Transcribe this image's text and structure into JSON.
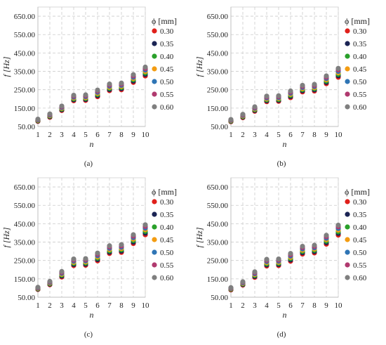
{
  "chart_data": [
    {
      "type": "scatter",
      "panel_label": "(a)",
      "xlabel": "n",
      "ylabel": "f [Hz]",
      "legend_title": "ϕ [mm]",
      "legend_placement": "right",
      "x": [
        1,
        2,
        3,
        4,
        5,
        6,
        7,
        8,
        9,
        10
      ],
      "x_ticks": [
        "1",
        "2",
        "3",
        "4",
        "5",
        "6",
        "7",
        "8",
        "9",
        "10"
      ],
      "y_ticks": [
        "50.00",
        "150.00",
        "250.00",
        "350.00",
        "450.00",
        "550.00",
        "650.00"
      ],
      "ylim": [
        50,
        700
      ],
      "grid": true,
      "series": [
        {
          "name": "0.30",
          "color": "#e0201b",
          "values": [
            78,
            100,
            137,
            190,
            192,
            212,
            245,
            250,
            290,
            325
          ]
        },
        {
          "name": "0.35",
          "color": "#1b2454",
          "values": [
            80,
            103,
            141,
            195,
            197,
            218,
            251,
            256,
            297,
            333
          ]
        },
        {
          "name": "0.40",
          "color": "#2aa02b",
          "values": [
            82,
            106,
            145,
            200,
            202,
            224,
            257,
            262,
            304,
            341
          ]
        },
        {
          "name": "0.45",
          "color": "#f39c12",
          "values": [
            84,
            109,
            149,
            205,
            207,
            230,
            263,
            268,
            311,
            349
          ]
        },
        {
          "name": "0.50",
          "color": "#2f75b5",
          "values": [
            86,
            112,
            153,
            210,
            212,
            236,
            269,
            274,
            318,
            357
          ]
        },
        {
          "name": "0.55",
          "color": "#b03a6f",
          "values": [
            88,
            115,
            157,
            215,
            217,
            242,
            275,
            280,
            325,
            365
          ]
        },
        {
          "name": "0.60",
          "color": "#7f7f7f",
          "values": [
            90,
            118,
            161,
            220,
            222,
            248,
            281,
            286,
            332,
            373
          ]
        }
      ]
    },
    {
      "type": "scatter",
      "panel_label": "(b)",
      "xlabel": "n",
      "ylabel": "f [Hz]",
      "legend_title": "ϕ [mm]",
      "legend_placement": "right",
      "x": [
        1,
        2,
        3,
        4,
        5,
        6,
        7,
        8,
        9,
        10
      ],
      "x_ticks": [
        "1",
        "2",
        "3",
        "4",
        "5",
        "6",
        "7",
        "8",
        "9",
        "10"
      ],
      "y_ticks": [
        "50.00",
        "150.00",
        "250.00",
        "350.00",
        "450.00",
        "550.00",
        "650.00"
      ],
      "ylim": [
        50,
        700
      ],
      "grid": true,
      "series": [
        {
          "name": "0.30",
          "color": "#e0201b",
          "values": [
            76,
            98,
            133,
            185,
            187,
            207,
            238,
            243,
            283,
            318
          ]
        },
        {
          "name": "0.35",
          "color": "#1b2454",
          "values": [
            78,
            101,
            137,
            190,
            192,
            213,
            244,
            249,
            290,
            326
          ]
        },
        {
          "name": "0.40",
          "color": "#2aa02b",
          "values": [
            80,
            104,
            141,
            195,
            197,
            219,
            250,
            255,
            297,
            334
          ]
        },
        {
          "name": "0.45",
          "color": "#f39c12",
          "values": [
            82,
            107,
            145,
            200,
            202,
            225,
            256,
            261,
            304,
            342
          ]
        },
        {
          "name": "0.50",
          "color": "#2f75b5",
          "values": [
            84,
            110,
            149,
            205,
            207,
            231,
            262,
            267,
            311,
            350
          ]
        },
        {
          "name": "0.55",
          "color": "#b03a6f",
          "values": [
            86,
            113,
            153,
            210,
            212,
            237,
            268,
            273,
            318,
            358
          ]
        },
        {
          "name": "0.60",
          "color": "#7f7f7f",
          "values": [
            88,
            116,
            157,
            215,
            217,
            243,
            274,
            279,
            325,
            366
          ]
        }
      ]
    },
    {
      "type": "scatter",
      "panel_label": "(c)",
      "xlabel": "n",
      "ylabel": "f [Hz]",
      "legend_title": "ϕ [mm]",
      "legend_placement": "right",
      "x": [
        1,
        2,
        3,
        4,
        5,
        6,
        7,
        8,
        9,
        10
      ],
      "x_ticks": [
        "1",
        "2",
        "3",
        "4",
        "5",
        "6",
        "7",
        "8",
        "9",
        "10"
      ],
      "y_ticks": [
        "50.00",
        "150.00",
        "250.00",
        "350.00",
        "450.00",
        "550.00",
        "650.00"
      ],
      "ylim": [
        50,
        700
      ],
      "grid": true,
      "series": [
        {
          "name": "0.30",
          "color": "#e0201b",
          "values": [
            92,
            118,
            160,
            222,
            224,
            248,
            288,
            294,
            342,
            390
          ]
        },
        {
          "name": "0.35",
          "color": "#1b2454",
          "values": [
            94,
            121,
            165,
            228,
            230,
            255,
            295,
            301,
            350,
            399
          ]
        },
        {
          "name": "0.40",
          "color": "#2aa02b",
          "values": [
            96,
            124,
            170,
            234,
            236,
            262,
            302,
            308,
            358,
            408
          ]
        },
        {
          "name": "0.45",
          "color": "#f39c12",
          "values": [
            98,
            127,
            175,
            240,
            242,
            269,
            309,
            315,
            366,
            417
          ]
        },
        {
          "name": "0.50",
          "color": "#2f75b5",
          "values": [
            100,
            130,
            180,
            246,
            248,
            276,
            316,
            322,
            374,
            426
          ]
        },
        {
          "name": "0.55",
          "color": "#b03a6f",
          "values": [
            102,
            133,
            185,
            252,
            254,
            283,
            323,
            329,
            382,
            435
          ]
        },
        {
          "name": "0.60",
          "color": "#7f7f7f",
          "values": [
            104,
            136,
            190,
            258,
            260,
            290,
            330,
            336,
            390,
            444
          ]
        }
      ]
    },
    {
      "type": "scatter",
      "panel_label": "(d)",
      "xlabel": "n",
      "ylabel": "f [Hz]",
      "legend_title": "ϕ [mm]",
      "legend_placement": "right",
      "x": [
        1,
        2,
        3,
        4,
        5,
        6,
        7,
        8,
        9,
        10
      ],
      "x_ticks": [
        "1",
        "2",
        "3",
        "4",
        "5",
        "6",
        "7",
        "8",
        "9",
        "10"
      ],
      "y_ticks": [
        "50.00",
        "150.00",
        "250.00",
        "350.00",
        "450.00",
        "550.00",
        "650.00"
      ],
      "ylim": [
        50,
        700
      ],
      "grid": true,
      "series": [
        {
          "name": "0.30",
          "color": "#e0201b",
          "values": [
            90,
            116,
            158,
            220,
            222,
            246,
            285,
            291,
            339,
            388
          ]
        },
        {
          "name": "0.35",
          "color": "#1b2454",
          "values": [
            92,
            119,
            163,
            226,
            228,
            253,
            292,
            298,
            347,
            397
          ]
        },
        {
          "name": "0.40",
          "color": "#2aa02b",
          "values": [
            94,
            122,
            168,
            232,
            234,
            260,
            299,
            305,
            355,
            406
          ]
        },
        {
          "name": "0.45",
          "color": "#f39c12",
          "values": [
            96,
            125,
            173,
            238,
            240,
            267,
            306,
            312,
            363,
            415
          ]
        },
        {
          "name": "0.50",
          "color": "#2f75b5",
          "values": [
            98,
            128,
            178,
            244,
            246,
            274,
            313,
            319,
            371,
            424
          ]
        },
        {
          "name": "0.55",
          "color": "#b03a6f",
          "values": [
            100,
            131,
            183,
            250,
            252,
            281,
            320,
            326,
            379,
            433
          ]
        },
        {
          "name": "0.60",
          "color": "#7f7f7f",
          "values": [
            102,
            134,
            188,
            256,
            258,
            288,
            327,
            333,
            387,
            442
          ]
        }
      ]
    }
  ]
}
